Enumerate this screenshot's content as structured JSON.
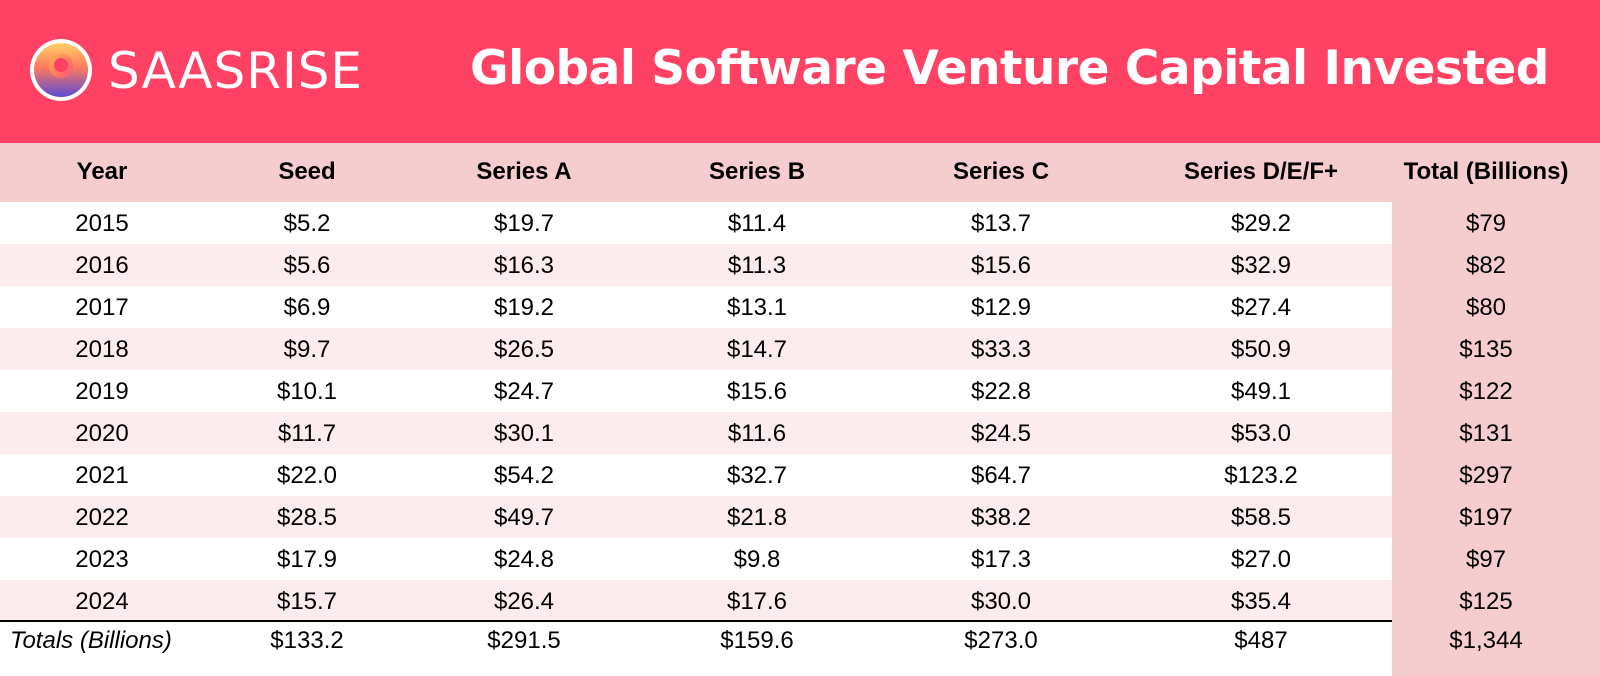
{
  "brand": {
    "name": "SAASRISE",
    "logo_icon": "sunrise-logo-icon",
    "banner_color": "#ff4163"
  },
  "title": "Global Software Venture Capital Invested",
  "colors": {
    "header_band": "#f5cdcf",
    "alt_row": "#fdeced",
    "total_column": "#f5cdcf"
  },
  "chart_data": {
    "type": "table",
    "title": "Global Software Venture Capital Invested",
    "columns": [
      "Year",
      "Seed",
      "Series A",
      "Series B",
      "Series C",
      "Series D/E/F+",
      "Total (Billions)"
    ],
    "rows": [
      [
        "2015",
        "$5.2",
        "$19.7",
        "$11.4",
        "$13.7",
        "$29.2",
        "$79"
      ],
      [
        "2016",
        "$5.6",
        "$16.3",
        "$11.3",
        "$15.6",
        "$32.9",
        "$82"
      ],
      [
        "2017",
        "$6.9",
        "$19.2",
        "$13.1",
        "$12.9",
        "$27.4",
        "$80"
      ],
      [
        "2018",
        "$9.7",
        "$26.5",
        "$14.7",
        "$33.3",
        "$50.9",
        "$135"
      ],
      [
        "2019",
        "$10.1",
        "$24.7",
        "$15.6",
        "$22.8",
        "$49.1",
        "$122"
      ],
      [
        "2020",
        "$11.7",
        "$30.1",
        "$11.6",
        "$24.5",
        "$53.0",
        "$131"
      ],
      [
        "2021",
        "$22.0",
        "$54.2",
        "$32.7",
        "$64.7",
        "$123.2",
        "$297"
      ],
      [
        "2022",
        "$28.5",
        "$49.7",
        "$21.8",
        "$38.2",
        "$58.5",
        "$197"
      ],
      [
        "2023",
        "$17.9",
        "$24.8",
        "$9.8",
        "$17.3",
        "$27.0",
        "$97"
      ],
      [
        "2024",
        "$15.7",
        "$26.4",
        "$17.6",
        "$30.0",
        "$35.4",
        "$125"
      ]
    ],
    "totals": [
      "Totals (Billions)",
      "$133.2",
      "$291.5",
      "$159.6",
      "$273.0",
      "$487",
      "$1,344"
    ]
  }
}
